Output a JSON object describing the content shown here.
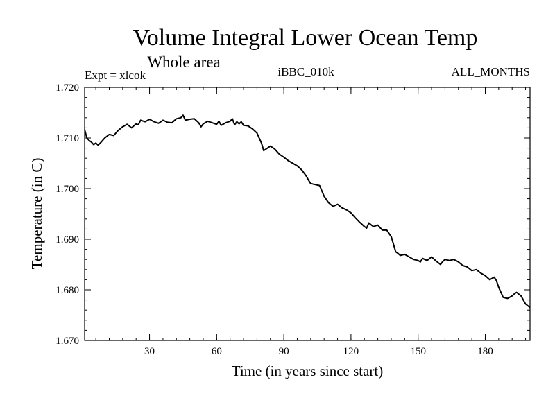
{
  "chart_data": {
    "type": "line",
    "title": "Volume Integral Lower Ocean Temp",
    "subtitle": "Whole area",
    "header_left": "Expt = xlcok",
    "header_center": "iBBC_010k",
    "header_right": "ALL_MONTHS",
    "xlabel": "Time (in years since start)",
    "ylabel": "Temperature (in C)",
    "xlim": [
      1,
      200
    ],
    "ylim": [
      1.67,
      1.72
    ],
    "xticks": [
      {
        "value": 30,
        "label": "30"
      },
      {
        "value": 60,
        "label": "60"
      },
      {
        "value": 90,
        "label": "90"
      },
      {
        "value": 120,
        "label": "120"
      },
      {
        "value": 150,
        "label": "150"
      },
      {
        "value": 180,
        "label": "180"
      }
    ],
    "yticks": [
      {
        "value": 1.67,
        "label": "1.670"
      },
      {
        "value": 1.68,
        "label": "1.680"
      },
      {
        "value": 1.69,
        "label": "1.690"
      },
      {
        "value": 1.7,
        "label": "1.700"
      },
      {
        "value": 1.71,
        "label": "1.710"
      },
      {
        "value": 1.72,
        "label": "1.720"
      }
    ],
    "grid": false,
    "series": [
      {
        "name": "Volume Integral Lower Ocean Temp",
        "points": [
          [
            1,
            1.7117
          ],
          [
            2,
            1.71
          ],
          [
            3,
            1.7095
          ],
          [
            4,
            1.7092
          ],
          [
            5,
            1.7087
          ],
          [
            6,
            1.709
          ],
          [
            7,
            1.7086
          ],
          [
            8,
            1.709
          ],
          [
            10,
            1.71
          ],
          [
            12,
            1.7107
          ],
          [
            14,
            1.7105
          ],
          [
            16,
            1.7115
          ],
          [
            18,
            1.7122
          ],
          [
            20,
            1.7127
          ],
          [
            22,
            1.712
          ],
          [
            24,
            1.7128
          ],
          [
            25,
            1.7126
          ],
          [
            26,
            1.7135
          ],
          [
            28,
            1.7132
          ],
          [
            30,
            1.7137
          ],
          [
            32,
            1.7132
          ],
          [
            34,
            1.7129
          ],
          [
            36,
            1.7135
          ],
          [
            38,
            1.7131
          ],
          [
            40,
            1.713
          ],
          [
            42,
            1.7138
          ],
          [
            44,
            1.714
          ],
          [
            45,
            1.7145
          ],
          [
            46,
            1.7135
          ],
          [
            48,
            1.7137
          ],
          [
            50,
            1.7138
          ],
          [
            52,
            1.713
          ],
          [
            53,
            1.7122
          ],
          [
            54,
            1.7128
          ],
          [
            56,
            1.7133
          ],
          [
            58,
            1.713
          ],
          [
            60,
            1.7127
          ],
          [
            61,
            1.7133
          ],
          [
            62,
            1.7125
          ],
          [
            64,
            1.713
          ],
          [
            66,
            1.7133
          ],
          [
            67,
            1.7138
          ],
          [
            68,
            1.7126
          ],
          [
            69,
            1.7132
          ],
          [
            70,
            1.7128
          ],
          [
            71,
            1.7132
          ],
          [
            72,
            1.7125
          ],
          [
            74,
            1.7124
          ],
          [
            76,
            1.7118
          ],
          [
            78,
            1.711
          ],
          [
            79,
            1.71
          ],
          [
            80,
            1.709
          ],
          [
            81,
            1.7075
          ],
          [
            82,
            1.7078
          ],
          [
            84,
            1.7084
          ],
          [
            86,
            1.7078
          ],
          [
            88,
            1.7068
          ],
          [
            90,
            1.7062
          ],
          [
            92,
            1.7055
          ],
          [
            94,
            1.705
          ],
          [
            96,
            1.7045
          ],
          [
            98,
            1.7037
          ],
          [
            100,
            1.7025
          ],
          [
            101,
            1.7017
          ],
          [
            102,
            1.701
          ],
          [
            104,
            1.7008
          ],
          [
            106,
            1.7006
          ],
          [
            108,
            1.6985
          ],
          [
            110,
            1.6972
          ],
          [
            112,
            1.6965
          ],
          [
            114,
            1.6969
          ],
          [
            116,
            1.6962
          ],
          [
            118,
            1.6958
          ],
          [
            120,
            1.6952
          ],
          [
            122,
            1.6942
          ],
          [
            124,
            1.6933
          ],
          [
            126,
            1.6925
          ],
          [
            127,
            1.6922
          ],
          [
            128,
            1.6932
          ],
          [
            130,
            1.6925
          ],
          [
            132,
            1.6928
          ],
          [
            134,
            1.6918
          ],
          [
            136,
            1.6918
          ],
          [
            138,
            1.6905
          ],
          [
            139,
            1.689
          ],
          [
            140,
            1.6875
          ],
          [
            141,
            1.6872
          ],
          [
            142,
            1.6868
          ],
          [
            144,
            1.687
          ],
          [
            146,
            1.6865
          ],
          [
            148,
            1.686
          ],
          [
            150,
            1.6858
          ],
          [
            151,
            1.6855
          ],
          [
            152,
            1.6862
          ],
          [
            154,
            1.6858
          ],
          [
            156,
            1.6865
          ],
          [
            158,
            1.6857
          ],
          [
            160,
            1.685
          ],
          [
            161,
            1.6856
          ],
          [
            162,
            1.686
          ],
          [
            164,
            1.6858
          ],
          [
            166,
            1.686
          ],
          [
            168,
            1.6855
          ],
          [
            170,
            1.6848
          ],
          [
            172,
            1.6845
          ],
          [
            174,
            1.6838
          ],
          [
            176,
            1.684
          ],
          [
            178,
            1.6833
          ],
          [
            180,
            1.6828
          ],
          [
            182,
            1.682
          ],
          [
            184,
            1.6825
          ],
          [
            185,
            1.6818
          ],
          [
            186,
            1.6805
          ],
          [
            188,
            1.6785
          ],
          [
            190,
            1.6783
          ],
          [
            192,
            1.6788
          ],
          [
            193,
            1.6792
          ],
          [
            194,
            1.6795
          ],
          [
            196,
            1.6788
          ],
          [
            198,
            1.6772
          ],
          [
            200,
            1.6765
          ]
        ]
      }
    ]
  },
  "colors": {
    "line": "#000000",
    "axis": "#000000",
    "background": "#ffffff"
  }
}
